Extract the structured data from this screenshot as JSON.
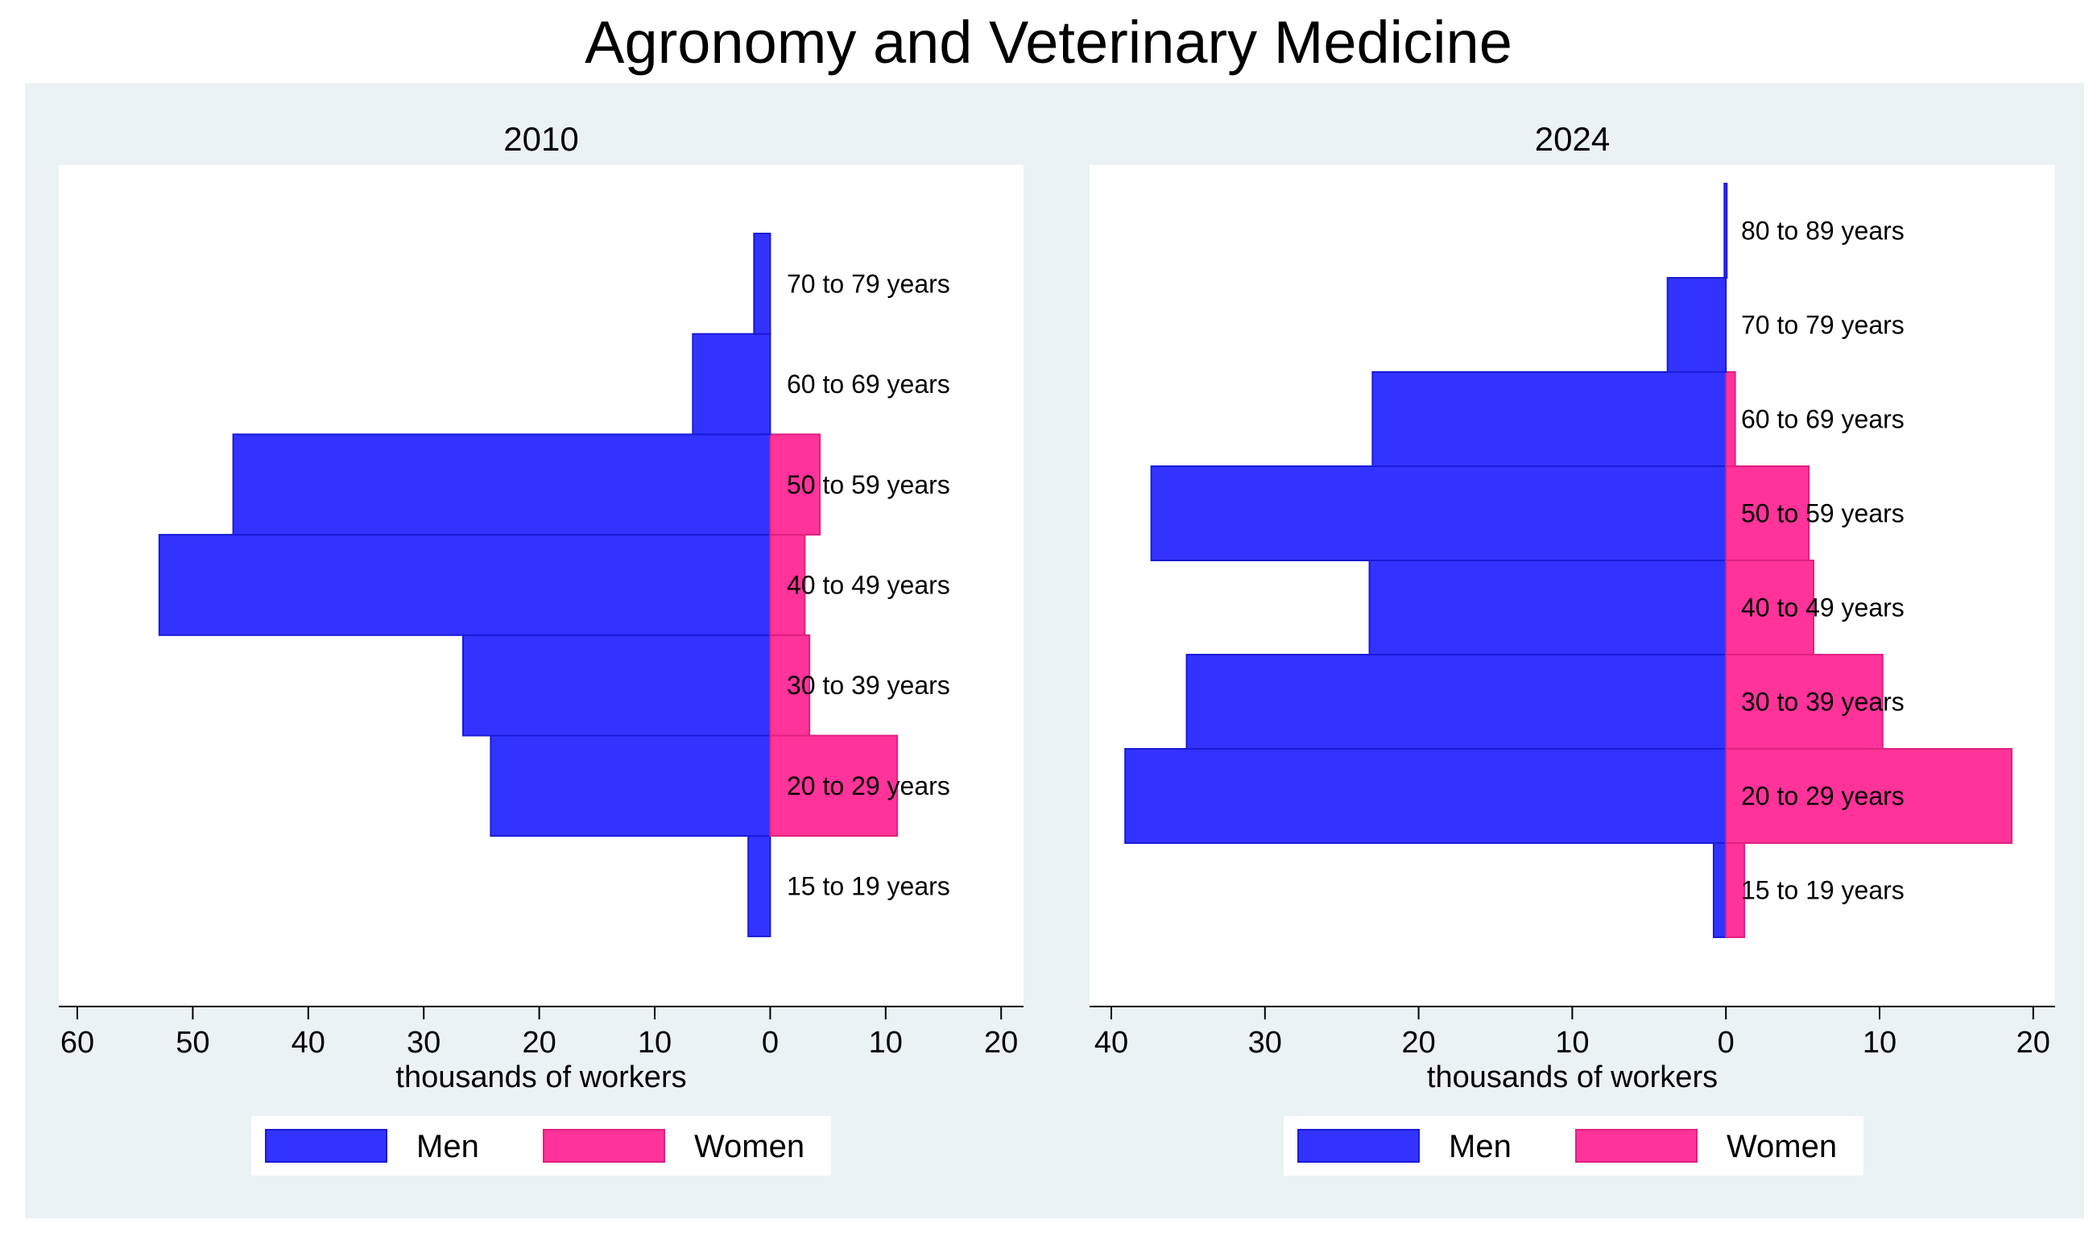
{
  "title": "Agronomy and Veterinary Medicine",
  "colors": {
    "men": "#3333ff",
    "men_edge": "#1a1ad9",
    "women": "#ff3399",
    "women_edge": "#e0207f",
    "panel_bg": "#eaf2f3",
    "plot_bg": "#ffffff"
  },
  "legend": {
    "entries": [
      "Men",
      "Women"
    ],
    "placement": "bottom"
  },
  "chart_data": [
    {
      "type": "bar",
      "orientation": "horizontal",
      "subtitle": "2010",
      "xlabel": "thousands of workers",
      "xlim": [
        -60,
        20
      ],
      "xticks": [
        -60,
        -50,
        -40,
        -30,
        -20,
        -10,
        0,
        10,
        20
      ],
      "xticklabels": [
        "60",
        "50",
        "40",
        "30",
        "20",
        "10",
        "0",
        "10",
        "20"
      ],
      "categories": [
        "15 to 19 years",
        "20 to 29 years",
        "30 to 39 years",
        "40 to 49 years",
        "50 to 59 years",
        "60 to 69 years",
        "70 to 79 years"
      ],
      "series": [
        {
          "name": "Men",
          "values": [
            -1.9,
            -24.2,
            -26.6,
            -52.9,
            -46.5,
            -6.7,
            -1.4
          ]
        },
        {
          "name": "Women",
          "values": [
            0,
            11.0,
            3.4,
            3.0,
            4.3,
            0,
            0
          ]
        }
      ],
      "grid": false
    },
    {
      "type": "bar",
      "orientation": "horizontal",
      "subtitle": "2024",
      "xlabel": "thousands of workers",
      "xlim": [
        -40,
        20
      ],
      "xticks": [
        -40,
        -30,
        -20,
        -10,
        0,
        10,
        20
      ],
      "xticklabels": [
        "40",
        "30",
        "20",
        "10",
        "0",
        "10",
        "20"
      ],
      "categories": [
        "15 to 19 years",
        "20 to 29 years",
        "30 to 39 years",
        "40 to 49 years",
        "50 to 59 years",
        "60 to 69 years",
        "70 to 79 years",
        "80 to 89 years"
      ],
      "series": [
        {
          "name": "Men",
          "values": [
            -0.8,
            -39.1,
            -35.1,
            -23.2,
            -37.4,
            -23.0,
            -3.8,
            -0.1
          ]
        },
        {
          "name": "Women",
          "values": [
            1.2,
            18.6,
            10.2,
            5.7,
            5.4,
            0.6,
            0,
            0
          ]
        }
      ],
      "grid": false
    }
  ]
}
